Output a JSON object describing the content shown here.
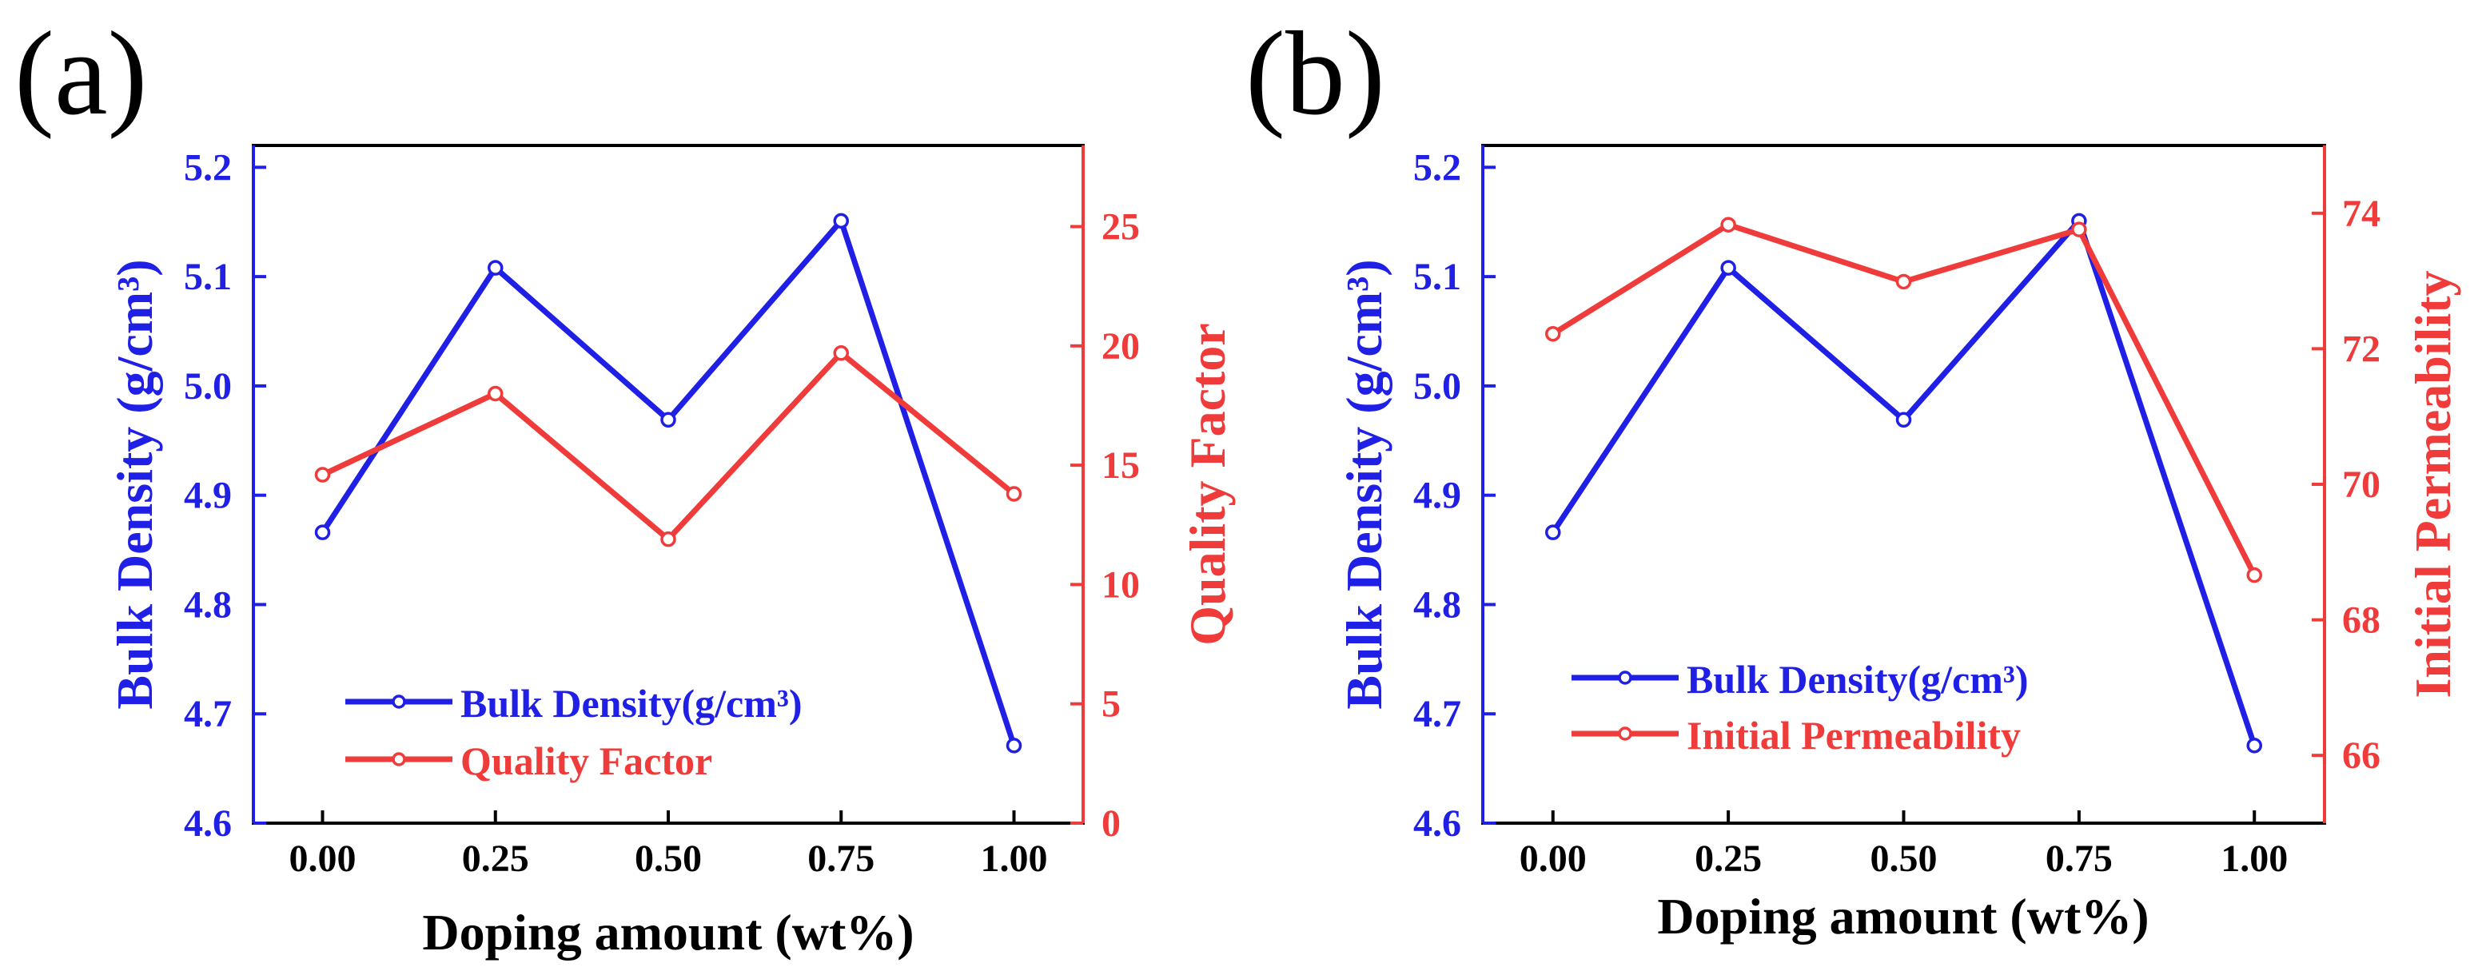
{
  "colors": {
    "density": "#1f1fe6",
    "secondary": "#f03b3b",
    "axis": "#000000"
  },
  "chart_data": [
    {
      "panel_label": "(a)",
      "type": "line",
      "xlabel": "Doping amount  (wt%)",
      "ylabel_left": "Bulk Density (g/cm³)",
      "ylabel_right": "Quality Factor",
      "x": [
        0.0,
        0.25,
        0.5,
        0.75,
        1.0
      ],
      "x_tick_labels": [
        "0.00",
        "0.25",
        "0.50",
        "0.75",
        "1.00"
      ],
      "xlim": [
        -0.1,
        1.1
      ],
      "ylim_left": [
        4.6,
        5.22
      ],
      "y_left_tick_labels": [
        "4.6",
        "4.7",
        "4.8",
        "4.9",
        "5.0",
        "5.1",
        "5.2"
      ],
      "ylim_right": [
        0,
        28.4
      ],
      "y_right_tick_labels": [
        "0",
        "5",
        "10",
        "15",
        "20",
        "25"
      ],
      "legend_position": "bottom-left",
      "series": [
        {
          "name": "Bulk Density(g/cm³)",
          "axis": "left",
          "color_key": "density",
          "values": [
            4.866,
            5.108,
            4.969,
            5.151,
            4.671
          ]
        },
        {
          "name": "Quality Factor",
          "axis": "right",
          "color_key": "secondary",
          "values": [
            14.6,
            18.0,
            11.9,
            19.7,
            13.8
          ]
        }
      ]
    },
    {
      "panel_label": "(b)",
      "type": "line",
      "xlabel": "Doping amount  (wt%)",
      "ylabel_left": "Bulk Density (g/cm³)",
      "ylabel_right": "Initial Permeability",
      "x": [
        0.0,
        0.25,
        0.5,
        0.75,
        1.0
      ],
      "x_tick_labels": [
        "0.00",
        "0.25",
        "0.50",
        "0.75",
        "1.00"
      ],
      "xlim": [
        -0.1,
        1.1
      ],
      "ylim_left": [
        4.6,
        5.22
      ],
      "y_left_tick_labels": [
        "4.6",
        "4.7",
        "4.8",
        "4.9",
        "5.0",
        "5.1",
        "5.2"
      ],
      "ylim_right": [
        65.0,
        75.0
      ],
      "y_right_tick_labels": [
        "66",
        "68",
        "70",
        "72",
        "74"
      ],
      "legend_position": "bottom-left",
      "series": [
        {
          "name": "Bulk Density(g/cm³)",
          "axis": "left",
          "color_key": "density",
          "values": [
            4.866,
            5.108,
            4.969,
            5.151,
            4.671
          ]
        },
        {
          "name": "Initial Permeability",
          "axis": "right",
          "color_key": "secondary",
          "values": [
            72.22,
            73.83,
            72.99,
            73.76,
            68.66
          ]
        }
      ]
    }
  ]
}
